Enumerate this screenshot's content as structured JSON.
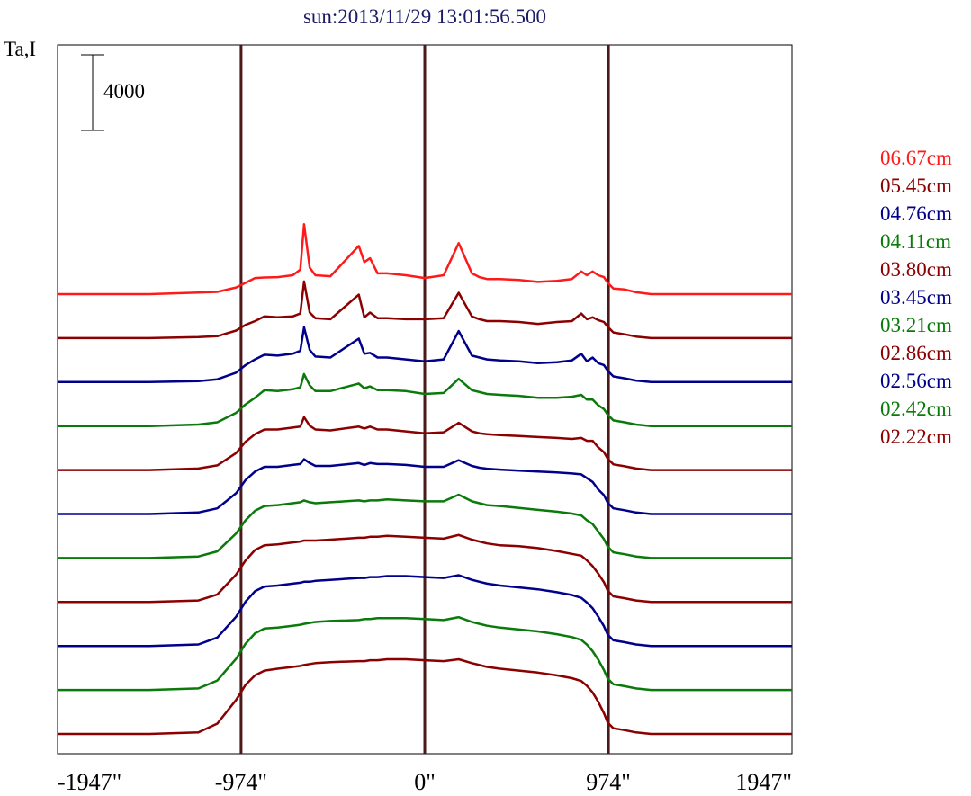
{
  "chart_data": {
    "type": "line",
    "title": "sun:2013/11/29 13:01:56.500",
    "ylabel": "Ta,I",
    "xlabel": "",
    "scale_bar_label": "4000",
    "scale_bar_value": 4000,
    "x_unit": "arcsec",
    "xlim": [
      -1947,
      1947
    ],
    "x_ticks": [
      -1947,
      -974,
      0,
      974,
      1947
    ],
    "x_tick_labels": [
      "-1947\"",
      "-974\"",
      "0\"",
      "974\"",
      "1947\""
    ],
    "reference_lines_x": [
      -974,
      0,
      974
    ],
    "grid": false,
    "legend_position": "right",
    "x": [
      -1947,
      -1460,
      -1200,
      -1100,
      -1000,
      -950,
      -900,
      -850,
      -780,
      -700,
      -660,
      -640,
      -610,
      -580,
      -500,
      -350,
      -320,
      -290,
      -250,
      -200,
      -100,
      0,
      100,
      180,
      250,
      290,
      330,
      400,
      500,
      600,
      700,
      780,
      830,
      860,
      890,
      920,
      950,
      970,
      1000,
      1060,
      1120,
      1200,
      1320,
      1460,
      1947
    ],
    "series": [
      {
        "name": "06.67cm",
        "color": "#ff1a1a",
        "offset": 0,
        "values": [
          0,
          0,
          80,
          120,
          350,
          600,
          850,
          880,
          900,
          1000,
          1300,
          3700,
          1400,
          1000,
          950,
          2550,
          1700,
          1900,
          1100,
          1100,
          1000,
          850,
          1000,
          2700,
          1100,
          900,
          800,
          800,
          750,
          650,
          700,
          800,
          1200,
          1000,
          1200,
          1000,
          900,
          600,
          300,
          250,
          100,
          0,
          0,
          0,
          0
        ]
      },
      {
        "name": "05.45cm",
        "color": "#8b0000",
        "offset": 1,
        "values": [
          0,
          0,
          50,
          100,
          400,
          700,
          900,
          1150,
          1100,
          1150,
          1300,
          3000,
          1350,
          1050,
          1000,
          2300,
          1100,
          1350,
          1050,
          1050,
          1000,
          1000,
          1050,
          2400,
          1150,
          1000,
          900,
          900,
          850,
          750,
          850,
          900,
          1300,
          1000,
          1100,
          950,
          850,
          600,
          300,
          200,
          80,
          0,
          0,
          0,
          0
        ]
      },
      {
        "name": "04.76cm",
        "color": "#00008b",
        "offset": 2,
        "values": [
          0,
          0,
          50,
          150,
          500,
          900,
          1200,
          1450,
          1400,
          1500,
          1650,
          2900,
          1700,
          1350,
          1300,
          2300,
          1500,
          1550,
          1300,
          1300,
          1200,
          1100,
          1200,
          2700,
          1400,
          1300,
          1200,
          1150,
          1100,
          1000,
          1050,
          1150,
          1500,
          1100,
          1300,
          1000,
          900,
          600,
          300,
          200,
          80,
          0,
          0,
          0,
          0
        ]
      },
      {
        "name": "04.11cm",
        "color": "#0a7a0a",
        "offset": 3,
        "values": [
          0,
          0,
          80,
          200,
          700,
          1150,
          1500,
          1900,
          1850,
          1950,
          2050,
          2750,
          2150,
          1850,
          1850,
          2250,
          2000,
          2100,
          1900,
          1900,
          1850,
          1700,
          1750,
          2500,
          1900,
          1800,
          1700,
          1650,
          1600,
          1500,
          1500,
          1550,
          1650,
          1400,
          1400,
          1100,
          900,
          600,
          300,
          200,
          80,
          0,
          0,
          0,
          0
        ]
      },
      {
        "name": "03.80cm",
        "color": "#8b0000",
        "offset": 4,
        "values": [
          0,
          0,
          80,
          250,
          900,
          1500,
          1900,
          2150,
          2150,
          2250,
          2300,
          2800,
          2350,
          2150,
          2100,
          2300,
          2200,
          2300,
          2150,
          2150,
          2050,
          1950,
          2000,
          2500,
          2050,
          1950,
          1900,
          1850,
          1800,
          1750,
          1700,
          1650,
          1700,
          1550,
          1550,
          1200,
          950,
          600,
          300,
          200,
          80,
          0,
          0,
          0,
          0
        ]
      },
      {
        "name": "03.45cm",
        "color": "#00008b",
        "offset": 5,
        "values": [
          0,
          0,
          80,
          300,
          1100,
          1800,
          2250,
          2500,
          2500,
          2600,
          2650,
          2900,
          2700,
          2550,
          2550,
          2700,
          2600,
          2700,
          2650,
          2650,
          2600,
          2500,
          2500,
          2850,
          2550,
          2450,
          2400,
          2350,
          2300,
          2250,
          2200,
          2150,
          2100,
          1900,
          1700,
          1300,
          1000,
          600,
          300,
          200,
          80,
          0,
          0,
          0,
          0
        ]
      },
      {
        "name": "03.21cm",
        "color": "#0a7a0a",
        "offset": 6,
        "values": [
          0,
          0,
          80,
          350,
          1300,
          2000,
          2500,
          2750,
          2800,
          2900,
          2950,
          3050,
          2950,
          2900,
          2950,
          3050,
          3000,
          3050,
          3050,
          3100,
          3050,
          3000,
          3000,
          3350,
          3000,
          2900,
          2800,
          2750,
          2650,
          2550,
          2450,
          2350,
          2250,
          2000,
          1800,
          1400,
          1000,
          600,
          300,
          200,
          80,
          0,
          0,
          0,
          0
        ]
      },
      {
        "name": "02.86cm",
        "color": "#8b0000",
        "offset": 7,
        "values": [
          0,
          0,
          80,
          400,
          1450,
          2200,
          2750,
          3000,
          3050,
          3150,
          3200,
          3250,
          3250,
          3250,
          3300,
          3400,
          3400,
          3450,
          3450,
          3500,
          3450,
          3400,
          3350,
          3550,
          3300,
          3200,
          3100,
          3000,
          2950,
          2850,
          2700,
          2550,
          2450,
          2200,
          1900,
          1500,
          1050,
          600,
          300,
          200,
          80,
          0,
          0,
          0,
          0
        ]
      },
      {
        "name": "02.56cm",
        "color": "#00008b",
        "offset": 8,
        "values": [
          0,
          0,
          80,
          450,
          1550,
          2350,
          2900,
          3150,
          3200,
          3300,
          3350,
          3400,
          3400,
          3450,
          3500,
          3600,
          3600,
          3650,
          3650,
          3700,
          3700,
          3650,
          3600,
          3750,
          3500,
          3400,
          3300,
          3200,
          3100,
          3000,
          2850,
          2700,
          2550,
          2300,
          2000,
          1550,
          1050,
          600,
          300,
          200,
          80,
          0,
          0,
          0,
          0
        ]
      },
      {
        "name": "02.42cm",
        "color": "#0a7a0a",
        "offset": 9,
        "values": [
          0,
          0,
          80,
          500,
          1650,
          2450,
          3000,
          3250,
          3300,
          3400,
          3450,
          3500,
          3550,
          3600,
          3650,
          3700,
          3750,
          3750,
          3800,
          3800,
          3800,
          3750,
          3700,
          3850,
          3600,
          3500,
          3400,
          3300,
          3200,
          3100,
          2950,
          2800,
          2650,
          2400,
          2050,
          1600,
          1050,
          600,
          300,
          200,
          80,
          0,
          0,
          0,
          0
        ]
      },
      {
        "name": "02.22cm",
        "color": "#8b0000",
        "offset": 10,
        "values": [
          0,
          0,
          80,
          550,
          1800,
          2600,
          3100,
          3350,
          3450,
          3550,
          3600,
          3650,
          3700,
          3750,
          3800,
          3850,
          3850,
          3900,
          3900,
          3950,
          3950,
          3900,
          3850,
          3950,
          3750,
          3650,
          3550,
          3450,
          3350,
          3250,
          3100,
          2950,
          2800,
          2550,
          2200,
          1700,
          1100,
          600,
          300,
          200,
          80,
          0,
          0,
          0,
          0
        ]
      }
    ],
    "series_axis_colors": [
      "#ff1a1a",
      "#8b0000",
      "#00008b",
      "#0a7a0a",
      "#8b0000",
      "#00008b",
      "#0a7a0a",
      "#8b0000",
      "#00008b",
      "#0a7a0a",
      "#8b0000"
    ],
    "title_color": "#1a1a66",
    "axis_color": "#000000",
    "reference_line_color": "#4a1a1a"
  }
}
